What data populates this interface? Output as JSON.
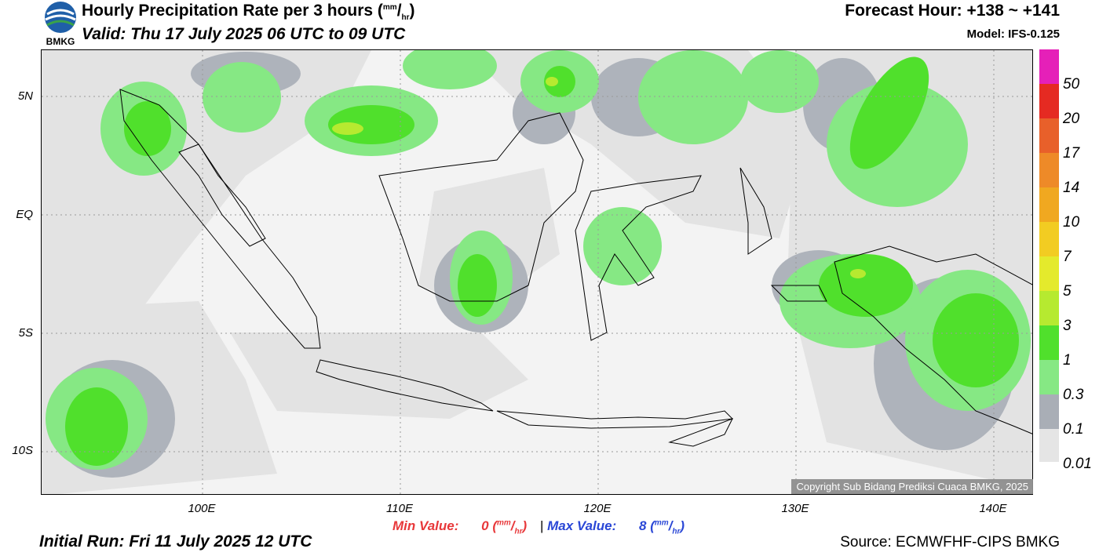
{
  "header": {
    "logo_text": "BMKG",
    "title_main": "Hourly Precipitation Rate per 3 hours (",
    "title_unit_top": "mm",
    "title_unit_sep": "/",
    "title_unit_bottom": "hr",
    "title_close": ")",
    "valid": "Valid: Thu 17 July 2025 06 UTC to 09 UTC",
    "forecast_hour": "Forecast Hour: +138 ~ +141",
    "model": "Model: IFS-0.125"
  },
  "map": {
    "lat_labels": [
      "5N",
      "EQ",
      "5S",
      "10S"
    ],
    "lon_labels": [
      "100E",
      "110E",
      "120E",
      "130E",
      "140E"
    ],
    "copyright": "Copyright Sub Bidang Prediksi Cuaca BMKG, 2025"
  },
  "legend": {
    "labels": [
      "50",
      "20",
      "17",
      "14",
      "10",
      "7",
      "5",
      "3",
      "1",
      "0.3",
      "0.1",
      "0.01"
    ],
    "colors": [
      "#e520b8",
      "#e52a22",
      "#e8602a",
      "#ee8a28",
      "#f0a820",
      "#f2cc22",
      "#e4ea2c",
      "#b6ea30",
      "#50e02c",
      "#86e884",
      "#a9aeb6",
      "#e5e5e5"
    ]
  },
  "footer": {
    "min_label": "Min Value:",
    "min_value": "0",
    "max_label": "Max Value:",
    "max_value": "8",
    "unit_top": "mm",
    "unit_bottom": "hr",
    "separator": "|",
    "initial_run": "Initial Run: Fri 11 July 2025 12 UTC",
    "source": "Source: ECMWFHF-CIPS BMKG"
  }
}
